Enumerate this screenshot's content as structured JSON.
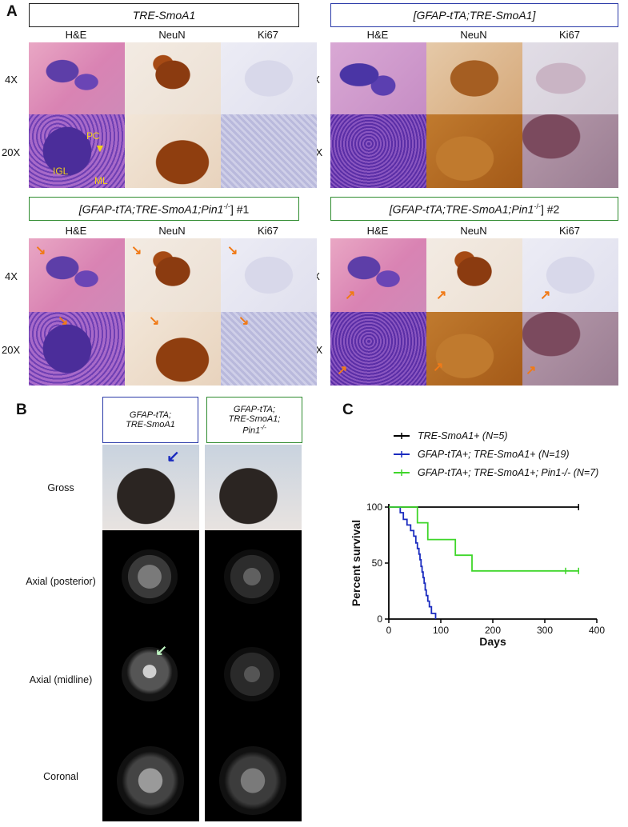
{
  "panel_labels": {
    "a": "A",
    "b": "B",
    "c": "C"
  },
  "panel_a": {
    "groups": [
      {
        "title": "TRE-SmoA1"
      },
      {
        "title": "[GFAP-tTA;TRE-SmoA1]"
      },
      {
        "title_prefix": "[GFAP-tTA;TRE-SmoA1;Pin1",
        "title_sup": "-/-",
        "title_suffix": "] #1"
      },
      {
        "title_prefix": "[GFAP-tTA;TRE-SmoA1;Pin1",
        "title_sup": "-/-",
        "title_suffix": "] #2"
      }
    ],
    "stains": [
      "H&E",
      "NeuN",
      "Ki67"
    ],
    "magnifications": [
      "4X",
      "20X"
    ],
    "annotations": {
      "pc": "PC",
      "igl": "IGL",
      "ml": "ML"
    }
  },
  "panel_b": {
    "columns": [
      {
        "line1": "GFAP-tTA;",
        "line2": "TRE-SmoA1",
        "line3": ""
      },
      {
        "line1": "GFAP-tTA;",
        "line2": "TRE-SmoA1;",
        "line3": "Pin1",
        "line3_sup": "-/-"
      }
    ],
    "rows": [
      "Gross",
      "Axial (posterior)",
      "Axial (midline)",
      "Coronal"
    ]
  },
  "chart_data": {
    "type": "line",
    "step": true,
    "xlabel": "Days",
    "ylabel": "Percent survival",
    "xlim": [
      0,
      400
    ],
    "ylim": [
      0,
      100
    ],
    "xticks": [
      0,
      100,
      200,
      300,
      400
    ],
    "yticks": [
      0,
      50,
      100
    ],
    "legend_position": "top",
    "series": [
      {
        "name": "TRE-SmoA1+  (N=5)",
        "color": "#000000",
        "x": [
          0,
          365
        ],
        "y": [
          100,
          100
        ]
      },
      {
        "name": "GFAP-tTA+; TRE-SmoA1+  (N=19)",
        "color": "#1a2bbf",
        "x": [
          0,
          22,
          28,
          35,
          42,
          48,
          52,
          55,
          58,
          60,
          62,
          64,
          66,
          68,
          70,
          72,
          75,
          78,
          82,
          90
        ],
        "y": [
          100,
          95,
          89,
          84,
          79,
          74,
          68,
          63,
          58,
          53,
          47,
          42,
          37,
          32,
          26,
          21,
          16,
          11,
          5,
          0
        ]
      },
      {
        "name": "GFAP-tTA+; TRE-SmoA1+; Pin1-/-  (N=7)",
        "color": "#3fd62a",
        "x": [
          0,
          55,
          75,
          128,
          160,
          365
        ],
        "y": [
          100,
          86,
          71,
          57,
          43,
          43
        ]
      }
    ],
    "censor_marks": [
      {
        "series": 0,
        "x": 365,
        "y": 100
      },
      {
        "series": 2,
        "x": 340,
        "y": 43
      },
      {
        "series": 2,
        "x": 365,
        "y": 43
      }
    ]
  }
}
